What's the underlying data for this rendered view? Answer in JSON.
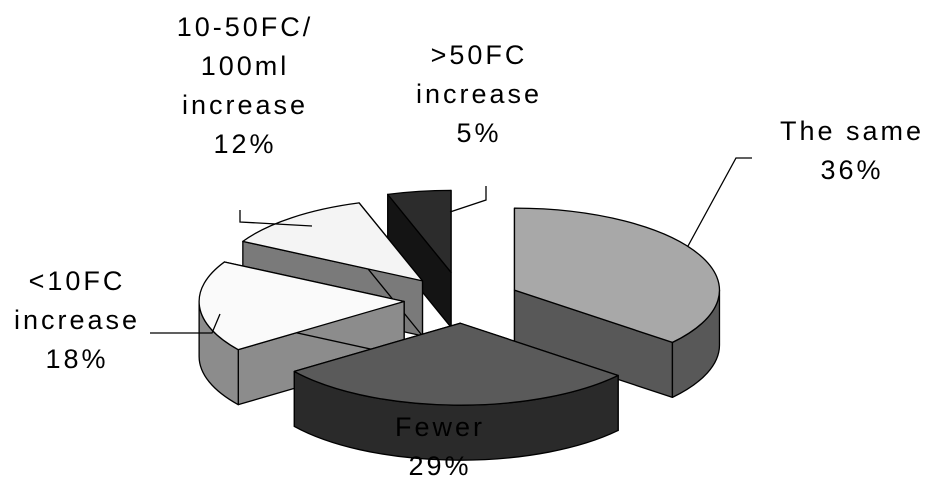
{
  "chart_data": {
    "type": "pie",
    "title": "",
    "slices": [
      {
        "label_lines": [
          "The same",
          "36%"
        ],
        "value": 36,
        "top_color": "#a8a8a8",
        "side_color": "#585858"
      },
      {
        "label_lines": [
          "Fewer",
          "29%"
        ],
        "value": 29,
        "top_color": "#5a5a5a",
        "side_color": "#2a2a2a"
      },
      {
        "label_lines": [
          "<10FC",
          "increase",
          "18%"
        ],
        "value": 18,
        "top_color": "#fafafa",
        "side_color": "#8c8c8c"
      },
      {
        "label_lines": [
          "10-50FC/",
          "100ml",
          "increase",
          "12%"
        ],
        "value": 12,
        "top_color": "#f4f4f4",
        "side_color": "#7a7a7a"
      },
      {
        "label_lines": [
          ">50FC",
          "increase",
          "5%"
        ],
        "value": 5,
        "top_color": "#2c2c2c",
        "side_color": "#141414"
      }
    ]
  }
}
